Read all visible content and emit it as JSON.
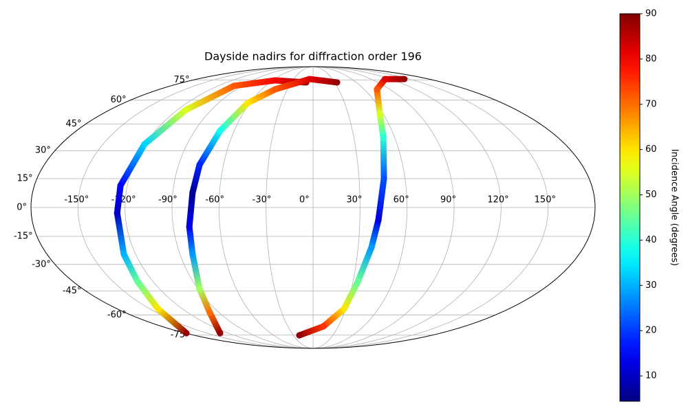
{
  "chart_data": {
    "type": "scatter",
    "projection": "mollweide",
    "title": "Dayside nadirs for diffraction order 196",
    "grid": true,
    "xlim": [
      -180,
      180
    ],
    "ylim": [
      -90,
      90
    ],
    "xticks": [
      {
        "value": -150,
        "label": "-150°"
      },
      {
        "value": -120,
        "label": "-120°"
      },
      {
        "value": -90,
        "label": "-90°"
      },
      {
        "value": -60,
        "label": "-60°"
      },
      {
        "value": -30,
        "label": "-30°"
      },
      {
        "value": 0,
        "label": "0°"
      },
      {
        "value": 30,
        "label": "30°"
      },
      {
        "value": 60,
        "label": "60°"
      },
      {
        "value": 90,
        "label": "90°"
      },
      {
        "value": 120,
        "label": "120°"
      },
      {
        "value": 150,
        "label": "150°"
      }
    ],
    "yticks": [
      {
        "value": -75,
        "label": "-75°"
      },
      {
        "value": -60,
        "label": "-60°"
      },
      {
        "value": -45,
        "label": "-45°"
      },
      {
        "value": -30,
        "label": "-30°"
      },
      {
        "value": -15,
        "label": "-15°"
      },
      {
        "value": 0,
        "label": "0°"
      },
      {
        "value": 15,
        "label": "15°"
      },
      {
        "value": 30,
        "label": "30°"
      },
      {
        "value": 45,
        "label": "45°"
      },
      {
        "value": 60,
        "label": "60°"
      },
      {
        "value": 75,
        "label": "75°"
      }
    ],
    "colormap": "jet",
    "colorbar_label": "Incidence Angle (degrees)",
    "clim": [
      4.4,
      90
    ],
    "cticks": [
      10,
      20,
      30,
      40,
      50,
      60,
      70,
      80,
      90
    ],
    "series": [
      {
        "x": [
          -9.5,
          -56,
          -100,
          -112.6,
          -120.4,
          -124.4,
          -125.1,
          -128,
          -131.7,
          -142.7,
          -179
        ],
        "values": [
          72.9,
          74.6,
          70.2,
          53.6,
          33.5,
          11.4,
          -2.9,
          -24.5,
          -39.7,
          -56.2,
          -73.4
        ],
        "color_values": [
          88,
          80,
          72,
          55,
          33,
          15,
          10,
          30,
          45,
          60,
          88
        ]
      },
      {
        "x": [
          33.4,
          -5.3,
          -44.4,
          -62.2,
          -70.7,
          -76,
          -77.3,
          -79.7,
          -81.5,
          -88.7,
          -99,
          -131.4
        ],
        "values": [
          72.9,
          75.7,
          67.6,
          58.1,
          41.2,
          22.3,
          7.8,
          -10,
          -24.5,
          -43.7,
          -58.5,
          -73.4
        ],
        "color_values": [
          88,
          82,
          72,
          60,
          38,
          18,
          6,
          14,
          28,
          50,
          70,
          88
        ]
      },
      {
        "x": [
          142,
          112,
          75,
          57.2,
          51.7,
          46.2,
          41.9,
          38.9,
          33.6,
          28.5,
          12.3,
          -20.9
        ],
        "values": [
          75.7,
          75.7,
          67.6,
          51.4,
          37.3,
          15,
          -6.4,
          -20.8,
          -39.7,
          -56.2,
          -68.1,
          -75.2
        ],
        "color_values": [
          88,
          82,
          72,
          55,
          40,
          22,
          12,
          28,
          45,
          60,
          75,
          88
        ]
      }
    ]
  }
}
